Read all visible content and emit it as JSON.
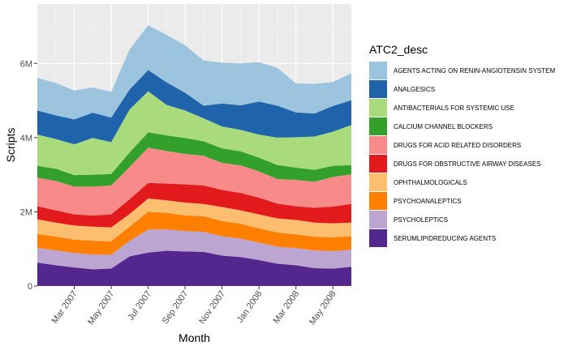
{
  "chart_data": {
    "type": "area",
    "stacked": true,
    "xlabel": "Month",
    "ylabel": "Scripts",
    "x_type": "date",
    "x": [
      "2007-01",
      "2007-02",
      "2007-03",
      "2007-04",
      "2007-05",
      "2007-06",
      "2007-07",
      "2007-08",
      "2007-09",
      "2007-10",
      "2007-11",
      "2007-12",
      "2008-01",
      "2008-02",
      "2008-03",
      "2008-04",
      "2008-05",
      "2008-06"
    ],
    "x_ticks": [
      {
        "value": "2007-03",
        "label": "Mar 2007"
      },
      {
        "value": "2007-05",
        "label": "May 2007"
      },
      {
        "value": "2007-07",
        "label": "Jul 2007"
      },
      {
        "value": "2007-09",
        "label": "Sep 2007"
      },
      {
        "value": "2007-11",
        "label": "Nov 2007"
      },
      {
        "value": "2008-01",
        "label": "Jan 2008"
      },
      {
        "value": "2008-03",
        "label": "Mar 2008"
      },
      {
        "value": "2008-05",
        "label": "May 2008"
      }
    ],
    "ylim": [
      0,
      7600000
    ],
    "y_ticks": [
      {
        "value": 0,
        "label": "0"
      },
      {
        "value": 2000000,
        "label": "2M"
      },
      {
        "value": 4000000,
        "label": "4M"
      },
      {
        "value": 6000000,
        "label": "6M"
      }
    ],
    "grid": true,
    "legend": {
      "title": "ATC2_desc",
      "position": "right"
    },
    "series": [
      {
        "name": "SERUMLIPIDREDUCING AGENTS",
        "color": "#54278F",
        "values": [
          630000,
          560000,
          500000,
          450000,
          470000,
          800000,
          900000,
          950000,
          930000,
          920000,
          820000,
          780000,
          700000,
          600000,
          560000,
          480000,
          470000,
          520000
        ]
      },
      {
        "name": "PSYCHOLEPTICS",
        "color": "#BCA5D1",
        "values": [
          400000,
          400000,
          390000,
          400000,
          370000,
          420000,
          620000,
          580000,
          550000,
          540000,
          520000,
          500000,
          470000,
          460000,
          460000,
          480000,
          470000,
          460000
        ]
      },
      {
        "name": "PSYCHOANALEPTICS",
        "color": "#FF7F00",
        "values": [
          370000,
          370000,
          360000,
          370000,
          360000,
          380000,
          480000,
          440000,
          420000,
          420000,
          410000,
          400000,
          380000,
          380000,
          370000,
          370000,
          370000,
          360000
        ]
      },
      {
        "name": "OPHTHALMOLOGICALS",
        "color": "#FDBF6F",
        "values": [
          400000,
          380000,
          380000,
          380000,
          380000,
          340000,
          360000,
          340000,
          350000,
          330000,
          380000,
          360000,
          380000,
          380000,
          390000,
          380000,
          380000,
          370000
        ]
      },
      {
        "name": "DRUGS FOR OBSTRUCTIVE AIRWAY DISEASES",
        "color": "#E31A1C",
        "values": [
          350000,
          330000,
          300000,
          300000,
          350000,
          400000,
          420000,
          450000,
          490000,
          500000,
          460000,
          470000,
          450000,
          400000,
          370000,
          400000,
          450000,
          500000
        ]
      },
      {
        "name": "DRUGS FOR ACID RELATED DISORDERS",
        "color": "#F88A89",
        "values": [
          770000,
          790000,
          750000,
          780000,
          780000,
          870000,
          950000,
          880000,
          820000,
          800000,
          730000,
          740000,
          710000,
          660000,
          710000,
          700000,
          800000,
          800000
        ]
      },
      {
        "name": "CALCIUM CHANNEL BLOCKERS",
        "color": "#33A02C",
        "values": [
          320000,
          330000,
          310000,
          320000,
          310000,
          390000,
          410000,
          420000,
          430000,
          390000,
          390000,
          380000,
          370000,
          380000,
          330000,
          320000,
          300000,
          250000
        ]
      },
      {
        "name": "ANTIBACTERIALS FOR SYSTEMIC USE",
        "color": "#A9DB7D",
        "values": [
          840000,
          800000,
          830000,
          990000,
          860000,
          1160000,
          1110000,
          820000,
          740000,
          620000,
          590000,
          580000,
          620000,
          740000,
          820000,
          900000,
          920000,
          1080000
        ]
      },
      {
        "name": "ANALGESICS",
        "color": "#1F64AA",
        "values": [
          650000,
          640000,
          670000,
          680000,
          660000,
          540000,
          570000,
          610000,
          480000,
          340000,
          620000,
          660000,
          890000,
          860000,
          670000,
          620000,
          690000,
          670000
        ]
      },
      {
        "name": "AGENTS ACTING ON RENIN-ANGIOTENSIN SYSTEM",
        "color": "#9CC4DE",
        "values": [
          880000,
          870000,
          780000,
          680000,
          690000,
          1080000,
          1210000,
          1280000,
          1280000,
          1220000,
          1100000,
          1130000,
          1060000,
          1020000,
          780000,
          800000,
          650000,
          720000
        ]
      }
    ]
  }
}
